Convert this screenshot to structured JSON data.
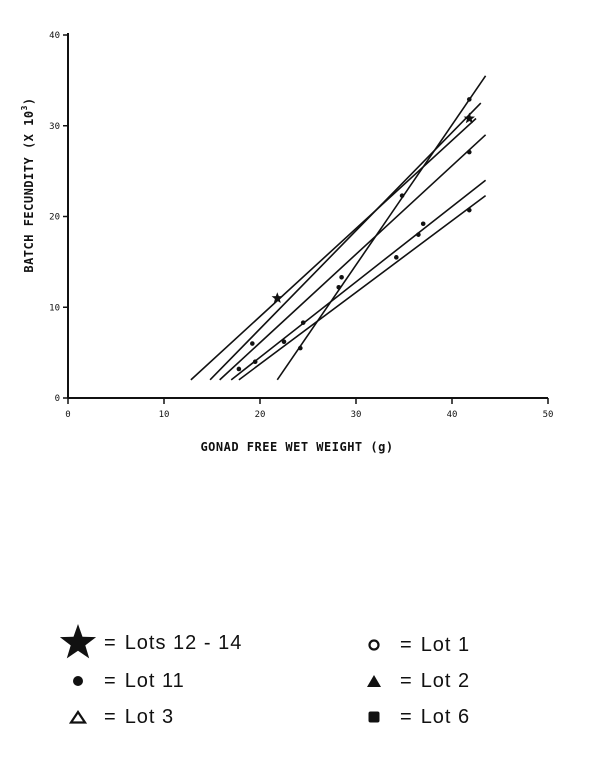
{
  "chart_data": {
    "type": "line",
    "xlabel": "GONAD FREE WET WEIGHT (g)",
    "ylabel": "BATCH FECUNDITY (X 10",
    "ylabel_sup": "3",
    "ylabel_close": ")",
    "xlim": [
      0,
      50
    ],
    "ylim": [
      0,
      40
    ],
    "xticks": [
      0,
      10,
      20,
      30,
      40,
      50
    ],
    "xtick_labels": [
      "0",
      "10",
      "20",
      "30",
      "40",
      "50"
    ],
    "yticks": [
      0,
      10,
      20,
      30,
      40
    ],
    "ytick_labels": [
      "0",
      "10",
      "20",
      "30",
      "40"
    ],
    "grid": false,
    "regression_lines": [
      {
        "x": [
          12.8,
          42.5
        ],
        "y": [
          2.0,
          30.8
        ]
      },
      {
        "x": [
          14.8,
          43.0
        ],
        "y": [
          2.0,
          32.5
        ]
      },
      {
        "x": [
          15.8,
          43.5
        ],
        "y": [
          2.0,
          29.0
        ]
      },
      {
        "x": [
          17.0,
          43.5
        ],
        "y": [
          2.0,
          24.0
        ]
      },
      {
        "x": [
          17.8,
          43.5
        ],
        "y": [
          2.0,
          22.3
        ]
      },
      {
        "x": [
          21.8,
          43.5
        ],
        "y": [
          2.0,
          35.5
        ]
      }
    ],
    "points": [
      {
        "marker": "star",
        "x": 21.8,
        "y": 11.0
      },
      {
        "marker": "star",
        "x": 41.8,
        "y": 30.8
      },
      {
        "marker": "dot",
        "x": 17.8,
        "y": 3.2
      },
      {
        "marker": "dot",
        "x": 19.2,
        "y": 6.0
      },
      {
        "marker": "dot",
        "x": 19.5,
        "y": 4.0
      },
      {
        "marker": "dot",
        "x": 22.5,
        "y": 6.2
      },
      {
        "marker": "dot",
        "x": 24.2,
        "y": 5.5
      },
      {
        "marker": "dot",
        "x": 24.5,
        "y": 8.3
      },
      {
        "marker": "dot",
        "x": 28.2,
        "y": 12.2
      },
      {
        "marker": "dot",
        "x": 28.5,
        "y": 13.3
      },
      {
        "marker": "dot",
        "x": 34.2,
        "y": 15.5
      },
      {
        "marker": "dot",
        "x": 34.8,
        "y": 22.3
      },
      {
        "marker": "dot",
        "x": 36.5,
        "y": 18.0
      },
      {
        "marker": "dot",
        "x": 37.0,
        "y": 19.2
      },
      {
        "marker": "dot",
        "x": 41.8,
        "y": 20.7
      },
      {
        "marker": "dot",
        "x": 41.8,
        "y": 27.1
      },
      {
        "marker": "dot",
        "x": 41.8,
        "y": 32.9
      }
    ]
  },
  "legend": {
    "items": [
      {
        "symbol": "star-icon",
        "label": "Lots 12 - 14"
      },
      {
        "symbol": "open-circle-icon",
        "label": "Lot 1"
      },
      {
        "symbol": "filled-circle-icon",
        "label": "Lot  11"
      },
      {
        "symbol": "filled-triangle-icon",
        "label": "Lot 2"
      },
      {
        "symbol": "open-triangle-icon",
        "label": "Lot  3"
      },
      {
        "symbol": "filled-square-icon",
        "label": "Lot 6"
      }
    ],
    "equals": "="
  }
}
